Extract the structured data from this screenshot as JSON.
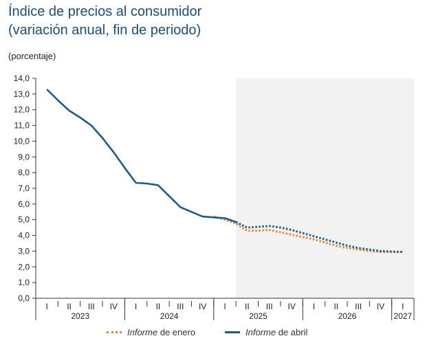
{
  "title_line1": "Índice de precios al consumidor",
  "title_line2": "(variación anual, fin de periodo)",
  "unit_label": "(porcentaje)",
  "colors": {
    "enero": "#e8893a",
    "abril": "#1f5a80",
    "forecast_bg": "#f2f2f2",
    "axis": "#333333"
  },
  "legend": [
    {
      "series": "enero",
      "italic": "Informe",
      "rest": " de enero"
    },
    {
      "series": "abril",
      "italic": "Informe",
      "rest": " de abril"
    }
  ],
  "chart_data": {
    "type": "line",
    "title": "Índice de precios al consumidor (variación anual, fin de periodo)",
    "ylabel": "(porcentaje)",
    "ylim": [
      0,
      14
    ],
    "yticks": [
      "0,0",
      "1,0",
      "2,0",
      "3,0",
      "4,0",
      "5,0",
      "6,0",
      "7,0",
      "8,0",
      "9,0",
      "10,0",
      "11,0",
      "12,0",
      "13,0",
      "14,0"
    ],
    "quarters": [
      "I",
      "II",
      "III",
      "IV",
      "I",
      "II",
      "III",
      "IV",
      "I",
      "II",
      "III",
      "IV",
      "I",
      "II",
      "III",
      "IV",
      "I"
    ],
    "years": [
      "2023",
      "2024",
      "2025",
      "2026",
      "2027"
    ],
    "forecast_start_index": 8.5,
    "series": [
      {
        "name": "Informe de enero",
        "key": "enero",
        "x": [
          7.5,
          8,
          8.5,
          9,
          9.5,
          10,
          10.5,
          11,
          11.5,
          12,
          12.5,
          13,
          13.5,
          14,
          14.5,
          15,
          15.5,
          16
        ],
        "values": [
          5.2,
          5.0,
          4.75,
          4.3,
          4.3,
          4.35,
          4.2,
          4.05,
          3.9,
          3.75,
          3.55,
          3.35,
          3.2,
          3.1,
          3.0,
          2.95,
          2.95,
          2.95
        ],
        "dashed_from_x": 7.5
      },
      {
        "name": "Informe de abril",
        "key": "abril",
        "x": [
          0,
          0.5,
          1,
          1.5,
          2,
          2.5,
          3,
          3.5,
          4,
          4.5,
          5,
          5.5,
          6,
          6.5,
          7,
          7.5,
          8,
          8.5,
          9,
          9.5,
          10,
          10.5,
          11,
          11.5,
          12,
          12.5,
          13,
          13.5,
          14,
          14.5,
          15,
          15.5,
          16
        ],
        "values": [
          13.3,
          12.6,
          11.95,
          11.5,
          11.0,
          10.2,
          9.3,
          8.3,
          7.35,
          7.3,
          7.2,
          6.5,
          5.8,
          5.5,
          5.2,
          5.15,
          5.1,
          4.85,
          4.5,
          4.55,
          4.6,
          4.5,
          4.35,
          4.15,
          3.95,
          3.75,
          3.55,
          3.35,
          3.2,
          3.1,
          3.0,
          2.97,
          2.95
        ],
        "dashed_from_x": 8.5
      }
    ]
  }
}
